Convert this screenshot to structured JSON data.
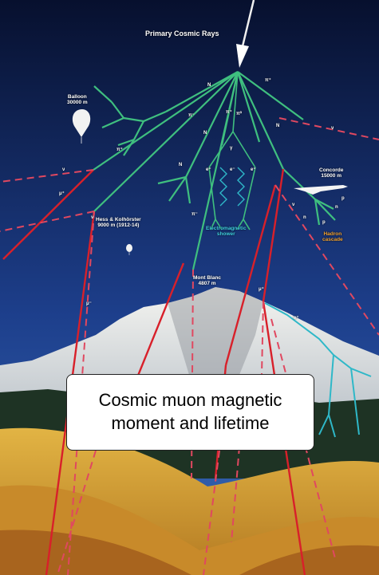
{
  "diagram": {
    "title": "Primary Cosmic Rays",
    "labels": {
      "balloon": "Balloon\n30000 m",
      "hess": "Hess & Kolhörster\n9000 m (1912-14)",
      "concorde": "Concorde\n15000 m",
      "em_shower": "Electromagnetic\nshower",
      "hadron": "Hadron\ncascade",
      "mont_blanc": "Mont Blanc\n4807 m"
    },
    "symbols": {
      "N": "N",
      "pi_plus": "π⁺",
      "pi_minus": "π⁻",
      "pi_zero": "π⁰",
      "mu_plus": "μ⁺",
      "mu_minus": "μ⁻",
      "nu": "ν",
      "gamma": "γ",
      "e_plus": "e⁺",
      "e_minus": "e⁻",
      "p": "p",
      "n": "n"
    },
    "colors": {
      "hadron_track": "#3fbf7f",
      "muon_track": "#d8202a",
      "neutrino_track": "#e04860",
      "em_track": "#2fb8c8",
      "sky_top": "#07102e",
      "sky_bottom": "#1d3f8c",
      "ground": "#d9a531"
    }
  },
  "caption": {
    "text": "Cosmic muon magnetic\nmoment and lifetime"
  }
}
